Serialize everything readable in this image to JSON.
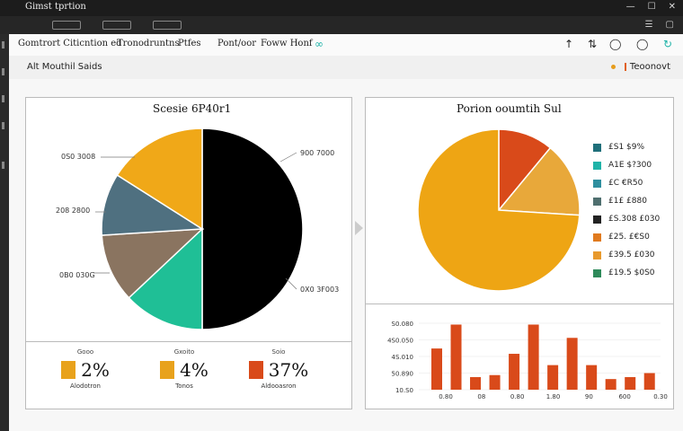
{
  "window": {
    "title": "Gimst tprtion"
  },
  "toolbar": {
    "items": [
      "Gomtrort Citicntion ed",
      "Tronodruntns",
      "Ptfes",
      "Pont/oor",
      "Foww Honf"
    ]
  },
  "subbar": {
    "label": "Alt Mouthil Saids",
    "right_label": "Teoonovt"
  },
  "pie1": {
    "title": "Scesie 6P40r1",
    "labels": [
      "0S0 3008",
      "208 2800",
      "0B0 030G",
      "900 7000",
      "0X0 3F003"
    ]
  },
  "pie2": {
    "title": "Porion ooumtih Sul"
  },
  "legend": [
    {
      "label": "£S1 $9%",
      "color": "#1f6f7a"
    },
    {
      "label": "A1E $?300",
      "color": "#1fb3a8"
    },
    {
      "label": "£C €R50",
      "color": "#2f8f9f"
    },
    {
      "label": "£1£ £880",
      "color": "#4f6f6f"
    },
    {
      "label": "£S.308 £030",
      "color": "#222222"
    },
    {
      "label": "£25. £€S0",
      "color": "#e07a1e"
    },
    {
      "label": "£39.5 £030",
      "color": "#e89a2e"
    },
    {
      "label": "£19.5 $0S0",
      "color": "#2e8a5a"
    }
  ],
  "stats": [
    {
      "caption": "Gooo",
      "value": "2%",
      "sub": "Alodotron",
      "color": "#e8a21c"
    },
    {
      "caption": "Gxoito",
      "value": "4%",
      "sub": "Tonos",
      "color": "#e8a21c"
    },
    {
      "caption": "Soio",
      "value": "37%",
      "sub": "Aldooasron",
      "color": "#d94a1a"
    }
  ],
  "bar_ylabels": [
    "S0.080",
    "4S0.050",
    "4S.010",
    "50.890",
    "10.S0"
  ],
  "bar_xlabels": [
    "0.80",
    "08",
    "0.80",
    "1.80",
    "90",
    "600",
    "0.30"
  ],
  "chart_data": [
    {
      "type": "pie",
      "title": "Scesie 6P40r1",
      "labels": [
        "0S0 3008",
        "208 2800",
        "0B0 030G",
        "900 7000",
        "0X0 3F003"
      ],
      "slices": [
        {
          "value": 50,
          "color": "#000000"
        },
        {
          "value": 13,
          "color": "#1fbf96"
        },
        {
          "value": 11,
          "color": "#8a7460"
        },
        {
          "value": 10,
          "color": "#4f7080"
        },
        {
          "value": 16,
          "color": "#f0a818"
        }
      ]
    },
    {
      "type": "pie",
      "title": "Porion ooumtih Sul",
      "slices": [
        {
          "value": 11,
          "color": "#d94a1a"
        },
        {
          "value": 15,
          "color": "#e8a83a"
        },
        {
          "value": 74,
          "color": "#eea514"
        }
      ]
    },
    {
      "type": "bar",
      "xlabels": [
        "0.80",
        "08",
        "0.80",
        "1.80",
        "90",
        "600",
        "0.30"
      ],
      "ylabels": [
        "S0.080",
        "4S0.050",
        "4S.010",
        "50.890",
        "10.S0"
      ],
      "series": [
        {
          "values": [
            0.62,
            0.98,
            0.19,
            0.22,
            0.54,
            0.98,
            0.37,
            0.78,
            0.37,
            0.16,
            0.19,
            0.25
          ]
        }
      ],
      "color": "#d94a1a"
    }
  ]
}
